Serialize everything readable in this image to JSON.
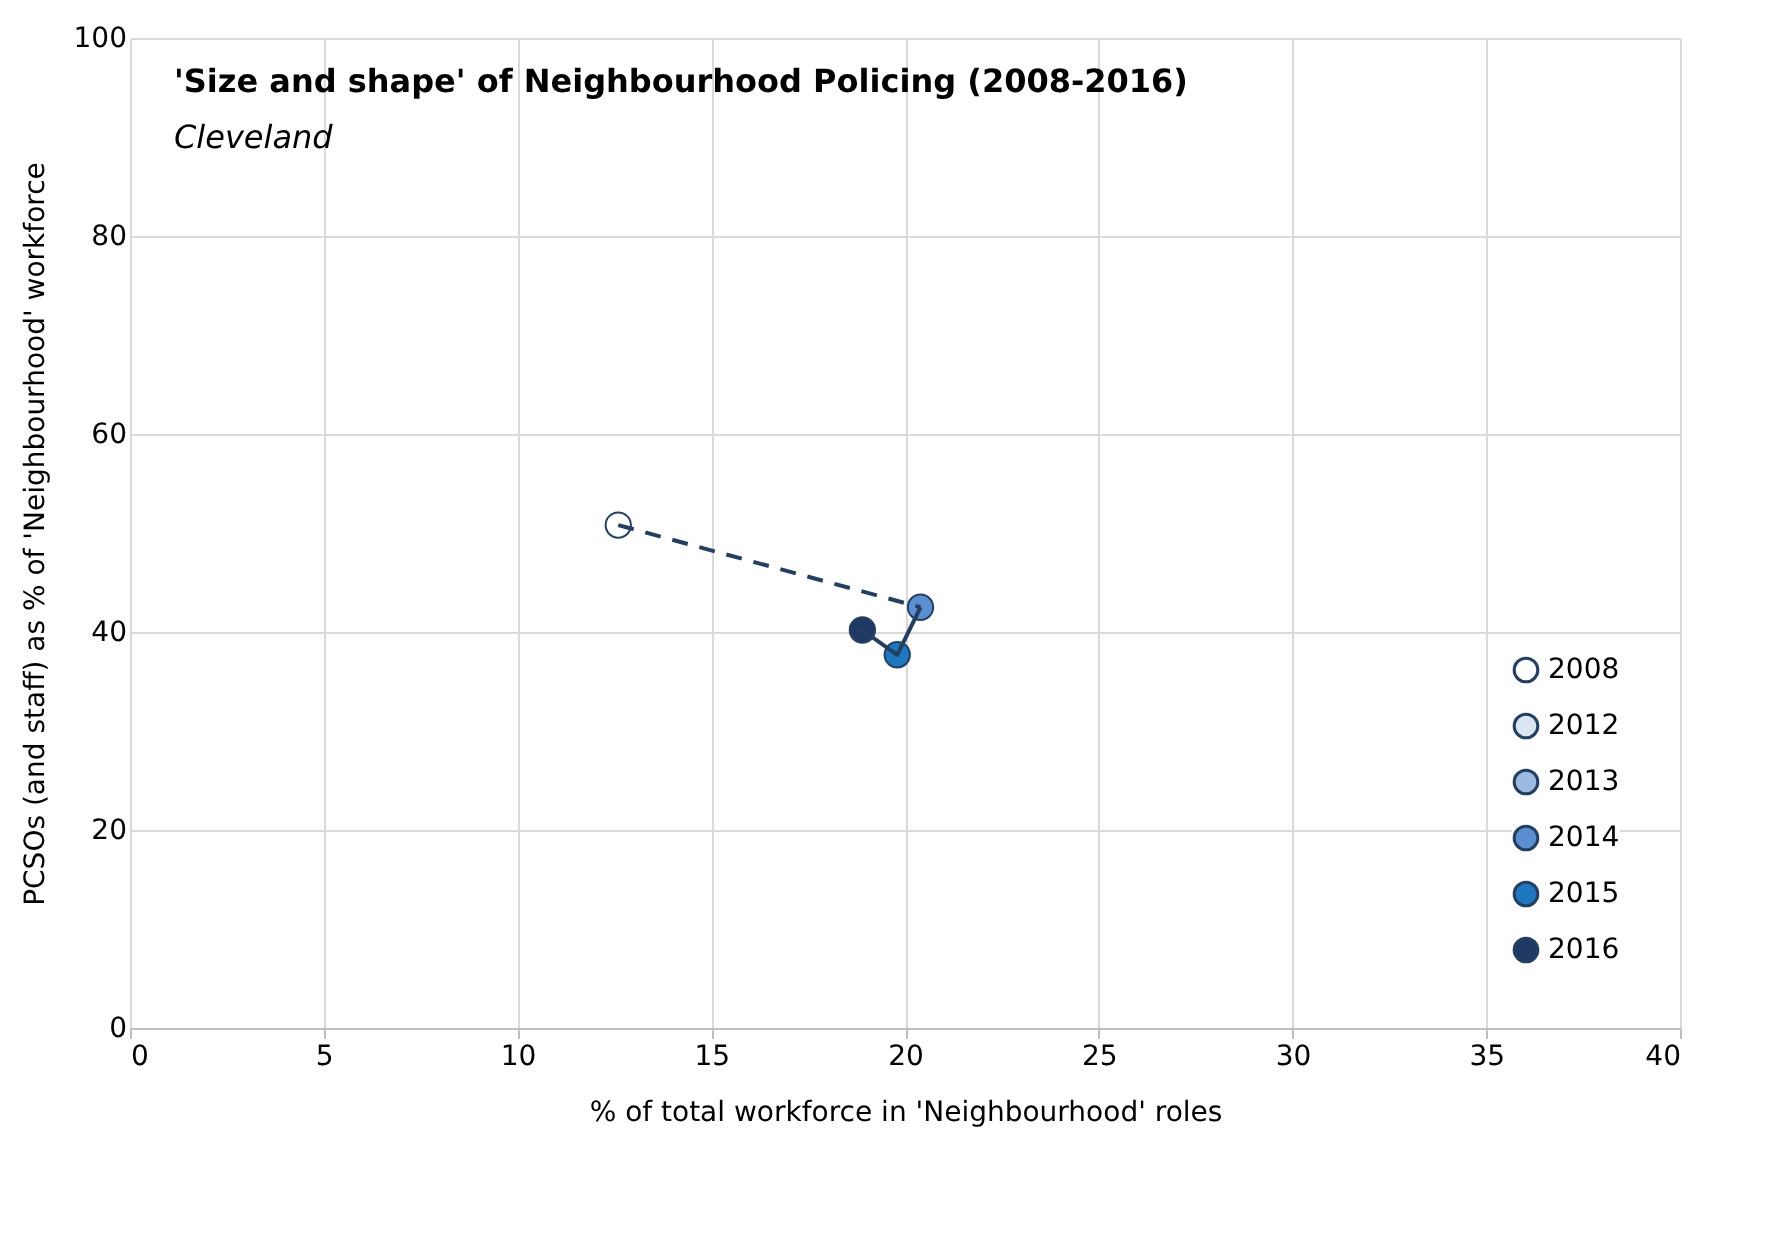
{
  "chart_data": {
    "type": "scatter",
    "title": "'Size and shape' of Neighbourhood Policing (2008-2016)",
    "subtitle": "Cleveland",
    "xlabel": "% of total workforce in 'Neighbourhood' roles",
    "ylabel": "PCSOs (and staff) as % of 'Neighbourhood' workforce",
    "series": [
      {
        "type": "line",
        "marker": "none",
        "color": "#243f60",
        "line_style": "dashed",
        "x": [
          12.6,
          20.4
        ],
        "values": [
          50.8,
          42.5
        ]
      },
      {
        "type": "line",
        "marker": "none",
        "color": "#243f60",
        "line_style": "solid",
        "x": [
          20.4,
          19.8,
          18.9
        ],
        "values": [
          42.5,
          37.7,
          40.2
        ]
      },
      {
        "name": "2008",
        "color": "#ffffff",
        "x": [
          12.6
        ],
        "values": [
          50.8
        ]
      },
      {
        "name": "2012",
        "color": "#dce6f2",
        "x": [
          null
        ],
        "values": [
          null
        ]
      },
      {
        "name": "2013",
        "color": "#9dbbe0",
        "x": [
          null
        ],
        "values": [
          null
        ]
      },
      {
        "name": "2014",
        "color": "#5b8fd1",
        "x": [
          20.4
        ],
        "values": [
          42.5
        ]
      },
      {
        "name": "2015",
        "color": "#1f77c0",
        "x": [
          19.8
        ],
        "values": [
          37.7
        ]
      },
      {
        "name": "2016",
        "color": "#1f3864",
        "x": [
          18.9
        ],
        "values": [
          40.2
        ]
      }
    ],
    "xlim": [
      0,
      40
    ],
    "xticks": [
      0,
      5,
      10,
      15,
      20,
      25,
      30,
      35,
      40
    ],
    "ylim": [
      0,
      100
    ],
    "yticks": [
      0,
      20,
      40,
      60,
      80,
      100
    ],
    "grid": true,
    "legend": "bottom right",
    "marker": "circle"
  }
}
